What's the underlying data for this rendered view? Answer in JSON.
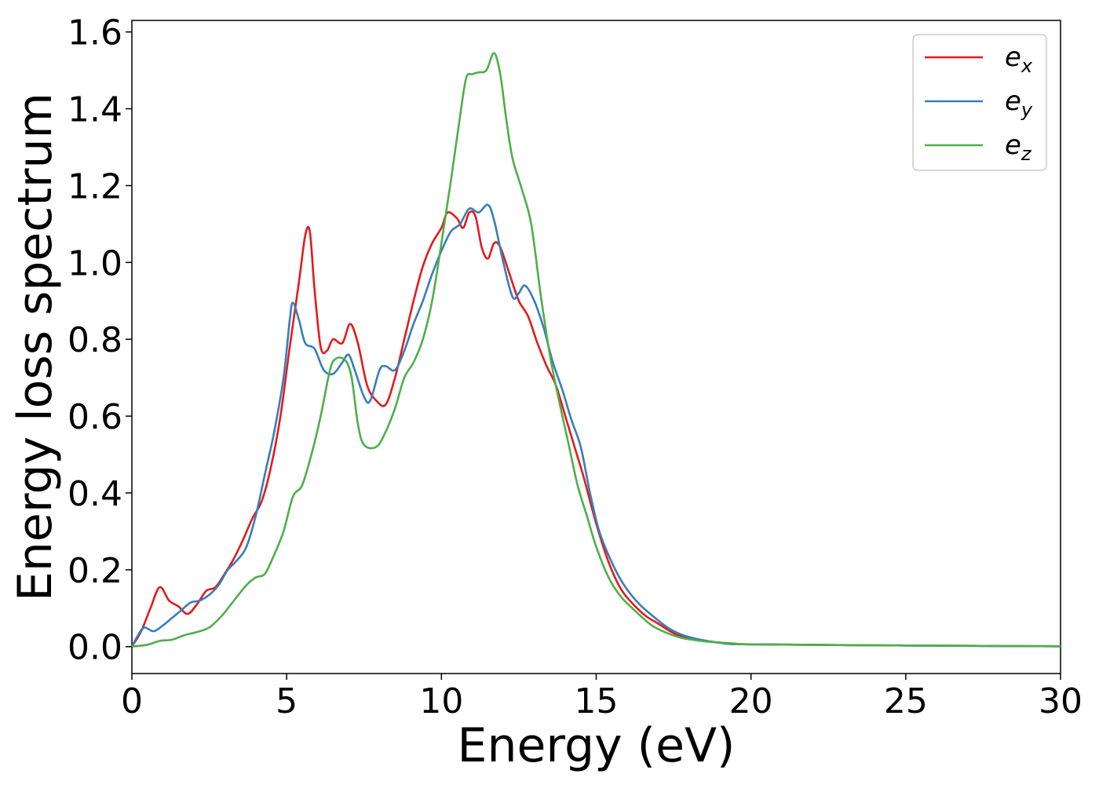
{
  "chart_data": {
    "type": "line",
    "xlabel": "Energy (eV)",
    "ylabel": "Energy loss spectrum",
    "xlim": [
      0,
      30
    ],
    "ylim": [
      -0.07,
      1.63
    ],
    "xticks": [
      0,
      5,
      10,
      15,
      20,
      25,
      30
    ],
    "xtick_labels": [
      "0",
      "5",
      "10",
      "15",
      "20",
      "25",
      "30"
    ],
    "yticks": [
      0.0,
      0.2,
      0.4,
      0.6,
      0.8,
      1.0,
      1.2,
      1.4,
      1.6
    ],
    "ytick_labels": [
      "0.0",
      "0.2",
      "0.4",
      "0.6",
      "0.8",
      "1.0",
      "1.2",
      "1.4",
      "1.6"
    ],
    "grid": false,
    "legend_position": "top-right",
    "series": [
      {
        "name_base": "e",
        "name_sub": "x",
        "color": "#e41a1c",
        "points": [
          [
            0,
            0
          ],
          [
            0.3,
            0.04
          ],
          [
            0.6,
            0.1
          ],
          [
            0.9,
            0.155
          ],
          [
            1.2,
            0.12
          ],
          [
            1.5,
            0.105
          ],
          [
            1.8,
            0.085
          ],
          [
            2.1,
            0.11
          ],
          [
            2.4,
            0.145
          ],
          [
            2.7,
            0.155
          ],
          [
            3.0,
            0.19
          ],
          [
            3.3,
            0.23
          ],
          [
            3.6,
            0.28
          ],
          [
            3.9,
            0.335
          ],
          [
            4.2,
            0.38
          ],
          [
            4.5,
            0.47
          ],
          [
            4.8,
            0.6
          ],
          [
            5.1,
            0.78
          ],
          [
            5.4,
            0.95
          ],
          [
            5.6,
            1.07
          ],
          [
            5.75,
            1.08
          ],
          [
            5.9,
            0.93
          ],
          [
            6.1,
            0.78
          ],
          [
            6.3,
            0.77
          ],
          [
            6.5,
            0.8
          ],
          [
            6.8,
            0.79
          ],
          [
            7.05,
            0.84
          ],
          [
            7.3,
            0.79
          ],
          [
            7.6,
            0.68
          ],
          [
            7.9,
            0.64
          ],
          [
            8.2,
            0.63
          ],
          [
            8.5,
            0.7
          ],
          [
            8.8,
            0.8
          ],
          [
            9.1,
            0.9
          ],
          [
            9.4,
            0.99
          ],
          [
            9.7,
            1.05
          ],
          [
            10.0,
            1.09
          ],
          [
            10.2,
            1.13
          ],
          [
            10.5,
            1.115
          ],
          [
            10.7,
            1.09
          ],
          [
            10.9,
            1.13
          ],
          [
            11.1,
            1.12
          ],
          [
            11.3,
            1.04
          ],
          [
            11.5,
            1.01
          ],
          [
            11.7,
            1.05
          ],
          [
            11.9,
            1.04
          ],
          [
            12.2,
            0.97
          ],
          [
            12.5,
            0.9
          ],
          [
            12.8,
            0.86
          ],
          [
            13.1,
            0.79
          ],
          [
            13.4,
            0.73
          ],
          [
            13.7,
            0.68
          ],
          [
            14.0,
            0.6
          ],
          [
            14.3,
            0.52
          ],
          [
            14.6,
            0.44
          ],
          [
            15.0,
            0.32
          ],
          [
            15.4,
            0.22
          ],
          [
            15.8,
            0.15
          ],
          [
            16.2,
            0.11
          ],
          [
            16.6,
            0.08
          ],
          [
            17.0,
            0.06
          ],
          [
            17.5,
            0.035
          ],
          [
            18.0,
            0.022
          ],
          [
            19.0,
            0.01
          ],
          [
            20.0,
            0.006
          ],
          [
            25.0,
            0.003
          ],
          [
            30.0,
            0.001
          ]
        ]
      },
      {
        "name_base": "e",
        "name_sub": "y",
        "color": "#377eb8",
        "points": [
          [
            0,
            0
          ],
          [
            0.2,
            0.03
          ],
          [
            0.4,
            0.05
          ],
          [
            0.7,
            0.04
          ],
          [
            1.0,
            0.055
          ],
          [
            1.3,
            0.075
          ],
          [
            1.6,
            0.095
          ],
          [
            1.9,
            0.115
          ],
          [
            2.2,
            0.12
          ],
          [
            2.5,
            0.135
          ],
          [
            2.8,
            0.16
          ],
          [
            3.1,
            0.2
          ],
          [
            3.4,
            0.225
          ],
          [
            3.7,
            0.26
          ],
          [
            4.0,
            0.34
          ],
          [
            4.3,
            0.45
          ],
          [
            4.6,
            0.56
          ],
          [
            4.9,
            0.7
          ],
          [
            5.1,
            0.85
          ],
          [
            5.2,
            0.895
          ],
          [
            5.4,
            0.85
          ],
          [
            5.6,
            0.79
          ],
          [
            5.9,
            0.775
          ],
          [
            6.2,
            0.72
          ],
          [
            6.5,
            0.71
          ],
          [
            6.8,
            0.74
          ],
          [
            7.0,
            0.76
          ],
          [
            7.2,
            0.72
          ],
          [
            7.5,
            0.65
          ],
          [
            7.7,
            0.64
          ],
          [
            8.0,
            0.72
          ],
          [
            8.2,
            0.73
          ],
          [
            8.5,
            0.72
          ],
          [
            8.8,
            0.77
          ],
          [
            9.1,
            0.84
          ],
          [
            9.4,
            0.9
          ],
          [
            9.7,
            0.97
          ],
          [
            10.0,
            1.03
          ],
          [
            10.3,
            1.08
          ],
          [
            10.6,
            1.1
          ],
          [
            10.9,
            1.14
          ],
          [
            11.2,
            1.13
          ],
          [
            11.5,
            1.15
          ],
          [
            11.7,
            1.11
          ],
          [
            12.0,
            1.0
          ],
          [
            12.3,
            0.91
          ],
          [
            12.5,
            0.92
          ],
          [
            12.7,
            0.94
          ],
          [
            13.0,
            0.9
          ],
          [
            13.3,
            0.83
          ],
          [
            13.6,
            0.74
          ],
          [
            13.9,
            0.67
          ],
          [
            14.2,
            0.59
          ],
          [
            14.5,
            0.52
          ],
          [
            14.8,
            0.4
          ],
          [
            15.1,
            0.3
          ],
          [
            15.5,
            0.22
          ],
          [
            15.9,
            0.16
          ],
          [
            16.4,
            0.11
          ],
          [
            16.9,
            0.075
          ],
          [
            17.4,
            0.045
          ],
          [
            18.0,
            0.025
          ],
          [
            19.0,
            0.01
          ],
          [
            20.0,
            0.006
          ],
          [
            25.0,
            0.003
          ],
          [
            30.0,
            0.001
          ]
        ]
      },
      {
        "name_base": "e",
        "name_sub": "z",
        "color": "#4daf4a",
        "points": [
          [
            0,
            0
          ],
          [
            0.5,
            0.005
          ],
          [
            0.9,
            0.015
          ],
          [
            1.3,
            0.018
          ],
          [
            1.7,
            0.03
          ],
          [
            2.1,
            0.038
          ],
          [
            2.5,
            0.05
          ],
          [
            2.9,
            0.08
          ],
          [
            3.3,
            0.12
          ],
          [
            3.7,
            0.16
          ],
          [
            4.0,
            0.18
          ],
          [
            4.3,
            0.19
          ],
          [
            4.6,
            0.24
          ],
          [
            4.9,
            0.3
          ],
          [
            5.2,
            0.39
          ],
          [
            5.5,
            0.42
          ],
          [
            5.8,
            0.5
          ],
          [
            6.1,
            0.6
          ],
          [
            6.4,
            0.72
          ],
          [
            6.6,
            0.75
          ],
          [
            6.9,
            0.745
          ],
          [
            7.1,
            0.7
          ],
          [
            7.3,
            0.58
          ],
          [
            7.5,
            0.525
          ],
          [
            7.9,
            0.52
          ],
          [
            8.2,
            0.56
          ],
          [
            8.5,
            0.62
          ],
          [
            8.8,
            0.7
          ],
          [
            9.1,
            0.74
          ],
          [
            9.4,
            0.8
          ],
          [
            9.7,
            0.9
          ],
          [
            10.0,
            1.05
          ],
          [
            10.3,
            1.21
          ],
          [
            10.6,
            1.38
          ],
          [
            10.8,
            1.48
          ],
          [
            11.0,
            1.49
          ],
          [
            11.2,
            1.495
          ],
          [
            11.45,
            1.5
          ],
          [
            11.7,
            1.545
          ],
          [
            11.9,
            1.49
          ],
          [
            12.1,
            1.37
          ],
          [
            12.3,
            1.27
          ],
          [
            12.6,
            1.19
          ],
          [
            12.9,
            1.1
          ],
          [
            13.2,
            0.92
          ],
          [
            13.5,
            0.76
          ],
          [
            13.8,
            0.64
          ],
          [
            14.1,
            0.53
          ],
          [
            14.4,
            0.42
          ],
          [
            14.7,
            0.34
          ],
          [
            15.0,
            0.26
          ],
          [
            15.4,
            0.18
          ],
          [
            15.8,
            0.13
          ],
          [
            16.3,
            0.09
          ],
          [
            16.8,
            0.055
          ],
          [
            17.3,
            0.035
          ],
          [
            17.8,
            0.022
          ],
          [
            18.5,
            0.014
          ],
          [
            19.5,
            0.008
          ],
          [
            20.0,
            0.006
          ],
          [
            25.0,
            0.003
          ],
          [
            30.0,
            0.001
          ]
        ]
      }
    ]
  }
}
